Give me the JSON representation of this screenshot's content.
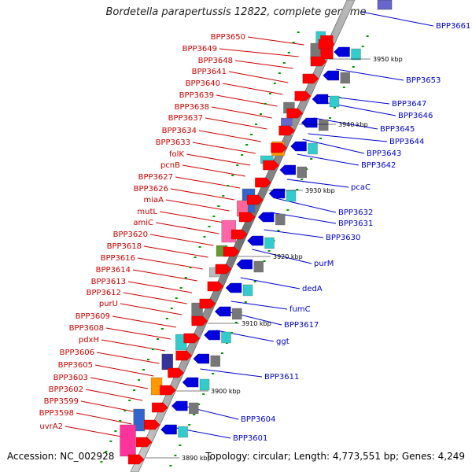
{
  "title": "Bordetella parapertussis 12822, complete genome",
  "footer": {
    "accession": "Accession: NC_002928",
    "summary": "Topology: circular; Length: 4,773,551 bp; Genes: 4,249"
  },
  "colors": {
    "left_label": "#cc0000",
    "right_label": "#0000cc",
    "backbone": "#8a8a8a",
    "tick": "#009900"
  },
  "kbp_markers": [
    "3950 kbp",
    "3940 kbp",
    "3930 kbp",
    "3920 kbp",
    "3910 kbp",
    "3900 kbp",
    "3890 kbp"
  ],
  "left_genes": [
    "BPP3650",
    "BPP3649",
    "BPP3648",
    "BPP3641",
    "BPP3640",
    "BPP3639",
    "BPP3638",
    "BPP3637",
    "BPP3634",
    "BPP3633",
    "folK",
    "pcnB",
    "BPP3627",
    "BPP3626",
    "miaA",
    "mutL",
    "amiC",
    "BPP3620",
    "BPP3618",
    "BPP3616",
    "BPP3614",
    "BPP3613",
    "BPP3612",
    "purU",
    "BPP3609",
    "BPP3608",
    "pdxH",
    "BPP3606",
    "BPP3605",
    "BPP3603",
    "BPP3602",
    "BPP3599",
    "BPP3598",
    "uvrA2"
  ],
  "right_genes": [
    "BPP3661",
    "BPP3653",
    "BPP3647",
    "BPP3646",
    "BPP3645",
    "BPP3644",
    "BPP3643",
    "BPP3642",
    "pcaC",
    "BPP3632",
    "BPP3631",
    "BPP3630",
    "purM",
    "dedA",
    "fumC",
    "BPP3617",
    "ggt",
    "BPP3611",
    "BPP3604",
    "BPP3601"
  ]
}
